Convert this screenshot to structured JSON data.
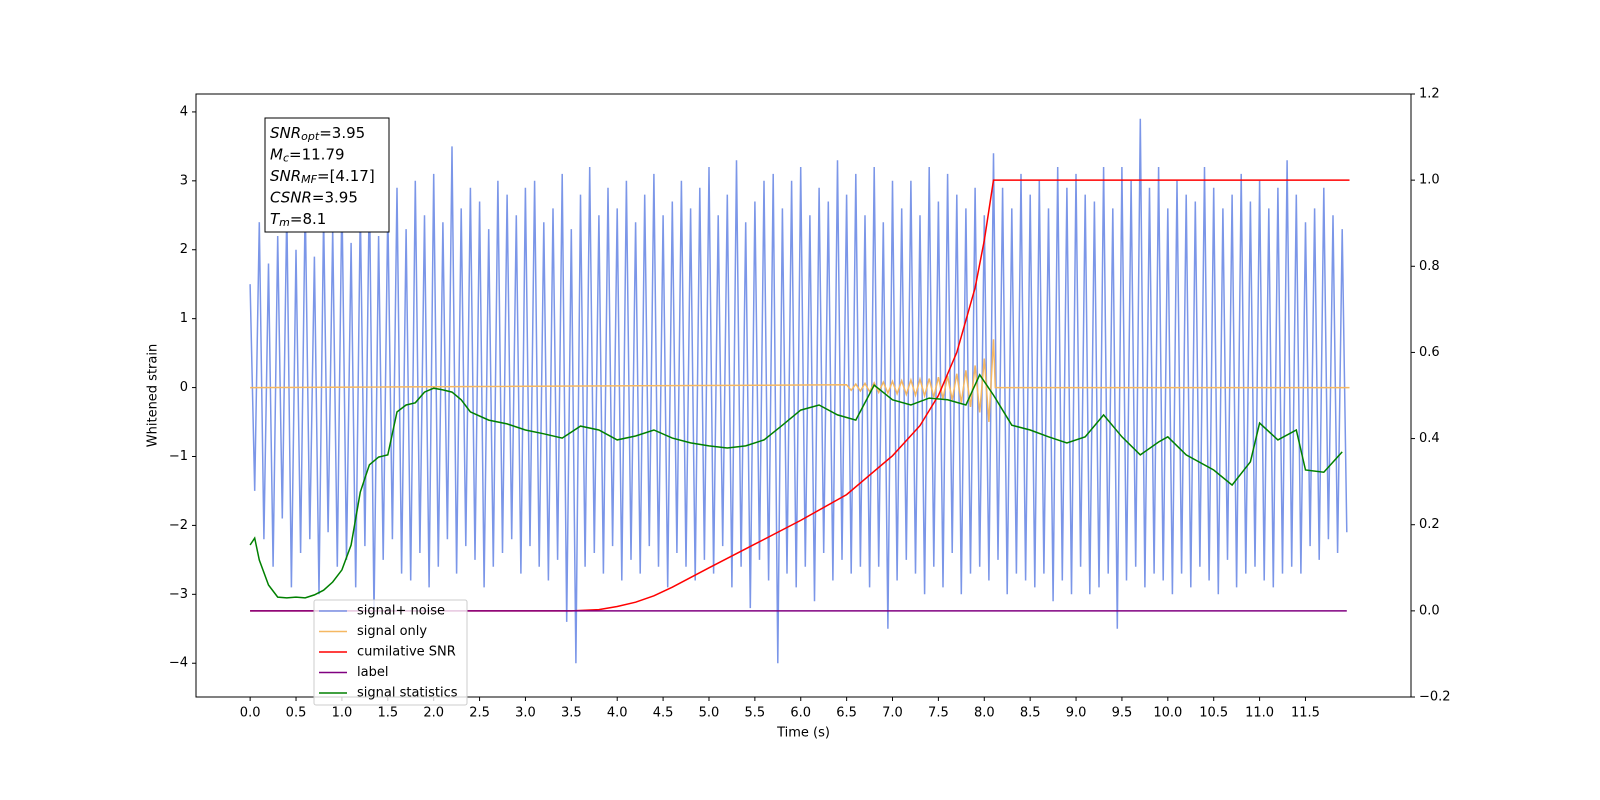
{
  "chart_data": {
    "type": "line",
    "xlabel": "Time (s)",
    "ylabel": "Whitened strain",
    "xlim": [
      -0.59,
      12.65
    ],
    "ylim": [
      -4.49,
      4.26
    ],
    "y2lim": [
      -0.2,
      1.2
    ],
    "xticks": [
      {
        "value": 0,
        "label": "0.0"
      },
      0.5,
      {
        "value": 1,
        "label": "1.0"
      },
      1.5,
      {
        "value": 2,
        "label": "2.0"
      },
      2.5,
      {
        "value": 3,
        "label": "3.0"
      },
      3.5,
      {
        "value": 4,
        "label": "4.0"
      },
      4.5,
      {
        "value": 5,
        "label": "5.0"
      },
      5.5,
      {
        "value": 6,
        "label": "6.0"
      },
      6.5,
      {
        "value": 7,
        "label": "7.0"
      },
      7.5,
      {
        "value": 8,
        "label": "8.0"
      },
      8.5,
      {
        "value": 9,
        "label": "9.0"
      },
      9.5,
      {
        "value": 10,
        "label": "10.0"
      },
      10.5,
      {
        "value": 11,
        "label": "11.0"
      },
      11.5
    ],
    "yticks": [
      {
        "value": -4,
        "label": "−4"
      },
      {
        "value": -3,
        "label": "−3"
      },
      {
        "value": -2,
        "label": "−2"
      },
      {
        "value": -1,
        "label": "−1"
      },
      0,
      1,
      2,
      3,
      4
    ],
    "y2ticks": [
      {
        "value": -0.2,
        "label": "−0.2"
      },
      {
        "value": 0,
        "label": "0.0"
      },
      0.2,
      0.4,
      0.6,
      0.8,
      {
        "value": 1,
        "label": "1.0"
      },
      1.2
    ],
    "legend_loc": "lower left",
    "annotations": [
      {
        "text": "SNR",
        "sub": "opt",
        "rest": "=3.95"
      },
      {
        "text": "M",
        "sub": "c",
        "rest": "=11.79"
      },
      {
        "text": "SNR",
        "sub": "MF",
        "rest": "=[4.17]"
      },
      {
        "text": "CSNR",
        "rest": "=3.95"
      },
      {
        "text": "T",
        "sub": "m",
        "rest": "=8.1"
      }
    ],
    "series": [
      {
        "name": "signal+ noise",
        "color": "#7b96e8",
        "axis": "y",
        "x": [
          0,
          0.05,
          0.1,
          0.15,
          0.2,
          0.25,
          0.3,
          0.35,
          0.4,
          0.45,
          0.5,
          0.55,
          0.6,
          0.65,
          0.7,
          0.75,
          0.8,
          0.85,
          0.9,
          0.95,
          1,
          1.05,
          1.1,
          1.15,
          1.2,
          1.25,
          1.3,
          1.35,
          1.4,
          1.45,
          1.5,
          1.55,
          1.6,
          1.65,
          1.7,
          1.75,
          1.8,
          1.85,
          1.9,
          1.95,
          2,
          2.05,
          2.1,
          2.15,
          2.2,
          2.25,
          2.3,
          2.35,
          2.4,
          2.45,
          2.5,
          2.55,
          2.6,
          2.65,
          2.7,
          2.75,
          2.8,
          2.85,
          2.9,
          2.95,
          3,
          3.05,
          3.1,
          3.15,
          3.2,
          3.25,
          3.3,
          3.35,
          3.4,
          3.45,
          3.5,
          3.55,
          3.6,
          3.65,
          3.7,
          3.75,
          3.8,
          3.85,
          3.9,
          3.95,
          4,
          4.05,
          4.1,
          4.15,
          4.2,
          4.25,
          4.3,
          4.35,
          4.4,
          4.45,
          4.5,
          4.55,
          4.6,
          4.65,
          4.7,
          4.75,
          4.8,
          4.85,
          4.9,
          4.95,
          5,
          5.05,
          5.1,
          5.15,
          5.2,
          5.25,
          5.3,
          5.35,
          5.4,
          5.45,
          5.5,
          5.55,
          5.6,
          5.65,
          5.7,
          5.75,
          5.8,
          5.85,
          5.9,
          5.95,
          6,
          6.05,
          6.1,
          6.15,
          6.2,
          6.25,
          6.3,
          6.35,
          6.4,
          6.45,
          6.5,
          6.55,
          6.6,
          6.65,
          6.7,
          6.75,
          6.8,
          6.85,
          6.9,
          6.95,
          7,
          7.05,
          7.1,
          7.15,
          7.2,
          7.25,
          7.3,
          7.35,
          7.4,
          7.45,
          7.5,
          7.55,
          7.6,
          7.65,
          7.7,
          7.75,
          7.8,
          7.85,
          7.9,
          7.95,
          8,
          8.05,
          8.1,
          8.15,
          8.2,
          8.25,
          8.3,
          8.35,
          8.4,
          8.45,
          8.5,
          8.55,
          8.6,
          8.65,
          8.7,
          8.75,
          8.8,
          8.85,
          8.9,
          8.95,
          9,
          9.05,
          9.1,
          9.15,
          9.2,
          9.25,
          9.3,
          9.35,
          9.4,
          9.45,
          9.5,
          9.55,
          9.6,
          9.65,
          9.7,
          9.75,
          9.8,
          9.85,
          9.9,
          9.95,
          10,
          10.05,
          10.1,
          10.15,
          10.2,
          10.25,
          10.3,
          10.35,
          10.4,
          10.45,
          10.5,
          10.55,
          10.6,
          10.65,
          10.7,
          10.75,
          10.8,
          10.85,
          10.9,
          10.95,
          11,
          11.05,
          11.1,
          11.15,
          11.2,
          11.25,
          11.3,
          11.35,
          11.4,
          11.45,
          11.5,
          11.55,
          11.6,
          11.65,
          11.7,
          11.75,
          11.8,
          11.85,
          11.9,
          11.95
        ],
        "values": [
          1.5,
          -1.5,
          2.4,
          -2.2,
          1.8,
          -2.6,
          2.2,
          -1.9,
          2.6,
          -2.9,
          2.0,
          -2.4,
          2.7,
          -2.2,
          1.9,
          -3.0,
          2.5,
          -2.1,
          2.3,
          -2.6,
          2.8,
          -2.5,
          2.1,
          -2.9,
          2.6,
          -2.3,
          3.0,
          -3.3,
          2.2,
          -2.5,
          2.6,
          -2.2,
          2.9,
          -2.7,
          2.3,
          -2.8,
          3.0,
          -2.4,
          2.5,
          -2.9,
          3.1,
          -2.6,
          2.4,
          -2.2,
          3.5,
          -2.7,
          2.6,
          -2.3,
          2.9,
          -2.5,
          2.7,
          -2.9,
          2.3,
          -2.6,
          3.0,
          -2.4,
          2.8,
          -2.2,
          2.5,
          -2.7,
          2.9,
          -2.3,
          3.0,
          -2.6,
          2.4,
          -2.8,
          2.6,
          -2.5,
          3.1,
          -3.4,
          2.3,
          -4.0,
          2.8,
          -2.6,
          3.2,
          -2.4,
          2.5,
          -2.7,
          2.9,
          -2.3,
          2.6,
          -2.8,
          3.0,
          -2.5,
          2.4,
          -2.7,
          2.8,
          -2.3,
          3.1,
          -2.6,
          2.5,
          -2.9,
          2.7,
          -2.4,
          3.0,
          -2.6,
          2.6,
          -2.8,
          2.9,
          -2.5,
          3.2,
          -2.7,
          2.5,
          -2.3,
          2.8,
          -2.9,
          3.3,
          -2.6,
          2.4,
          -3.2,
          2.7,
          -2.5,
          3.0,
          -2.8,
          3.1,
          -4.0,
          2.6,
          -2.7,
          3.0,
          -2.9,
          3.2,
          -2.6,
          2.5,
          -3.1,
          2.9,
          -2.4,
          2.7,
          -2.8,
          3.3,
          -2.5,
          2.8,
          -2.7,
          3.1,
          -2.6,
          2.5,
          -2.9,
          3.2,
          -2.6,
          2.4,
          -3.5,
          3.0,
          -2.8,
          2.6,
          -2.5,
          3.0,
          -2.7,
          2.5,
          -3.0,
          3.2,
          -2.6,
          2.7,
          -2.9,
          3.1,
          -2.4,
          2.8,
          -3.0,
          2.6,
          -2.7,
          2.9,
          -2.6,
          2.5,
          -2.8,
          3.4,
          -2.5,
          2.9,
          -3.0,
          2.6,
          -2.7,
          3.1,
          -2.8,
          2.8,
          -2.9,
          3.0,
          -2.7,
          2.6,
          -3.1,
          3.2,
          -2.8,
          2.9,
          -3.0,
          3.1,
          -2.6,
          2.8,
          -3.0,
          2.7,
          -2.9,
          3.2,
          -2.7,
          2.6,
          -3.5,
          3.2,
          -2.8,
          3.0,
          -2.6,
          3.9,
          -2.9,
          2.9,
          -2.7,
          3.2,
          -2.8,
          2.6,
          -3.0,
          3.0,
          -2.7,
          2.8,
          -2.9,
          2.7,
          -2.6,
          3.2,
          -2.8,
          2.9,
          -3.0,
          2.6,
          -2.5,
          2.8,
          -2.9,
          3.1,
          -2.7,
          2.7,
          -2.6,
          3.0,
          -2.8,
          2.6,
          -2.9,
          2.9,
          -2.7,
          3.3,
          -2.6,
          2.8,
          -2.7,
          2.4,
          -2.3,
          2.6,
          -2.5,
          2.9,
          -2.2,
          2.5,
          -2.4,
          2.3,
          -2.1
        ]
      },
      {
        "name": "signal only",
        "color": "#f5b862",
        "axis": "y",
        "x": [
          0,
          6.5,
          6.55,
          6.6,
          6.65,
          6.7,
          6.75,
          6.8,
          6.85,
          6.9,
          6.95,
          7,
          7.05,
          7.1,
          7.15,
          7.2,
          7.25,
          7.3,
          7.35,
          7.4,
          7.45,
          7.5,
          7.55,
          7.6,
          7.65,
          7.7,
          7.75,
          7.8,
          7.85,
          7.9,
          7.95,
          8,
          8.05,
          8.1,
          8.12,
          11.98
        ],
        "values": [
          0,
          0.04,
          -0.04,
          0.05,
          -0.05,
          0.06,
          -0.06,
          0.07,
          -0.07,
          0.08,
          -0.08,
          0.09,
          -0.09,
          0.1,
          -0.1,
          0.11,
          -0.11,
          0.12,
          -0.12,
          0.13,
          -0.14,
          0.15,
          -0.16,
          0.17,
          -0.18,
          0.2,
          -0.22,
          0.25,
          -0.28,
          0.32,
          -0.36,
          0.42,
          -0.5,
          0.7,
          0,
          0
        ]
      },
      {
        "name": "cumilative SNR",
        "color": "#ff0000",
        "axis": "y2",
        "x": [
          0,
          3.5,
          3.8,
          4,
          4.2,
          4.4,
          4.6,
          5,
          5.5,
          6,
          6.5,
          7,
          7.3,
          7.5,
          7.7,
          7.9,
          8,
          8.05,
          8.1,
          11.98
        ],
        "values": [
          0,
          0,
          0.003,
          0.01,
          0.02,
          0.035,
          0.055,
          0.1,
          0.155,
          0.21,
          0.27,
          0.36,
          0.43,
          0.5,
          0.6,
          0.75,
          0.86,
          0.93,
          1,
          1
        ]
      },
      {
        "name": "label",
        "color": "#800080",
        "axis": "y2",
        "x": [
          0,
          11.95
        ],
        "values": [
          0,
          0
        ]
      },
      {
        "name": "signal statistics",
        "color": "#008000",
        "axis": "y2",
        "x": [
          0,
          0.05,
          0.1,
          0.2,
          0.3,
          0.4,
          0.5,
          0.6,
          0.7,
          0.8,
          0.9,
          1,
          1.1,
          1.2,
          1.3,
          1.4,
          1.5,
          1.6,
          1.7,
          1.8,
          1.9,
          2,
          2.1,
          2.2,
          2.3,
          2.4,
          2.6,
          2.8,
          3,
          3.2,
          3.4,
          3.6,
          3.8,
          4,
          4.2,
          4.4,
          4.6,
          4.8,
          5,
          5.2,
          5.4,
          5.6,
          5.8,
          6,
          6.2,
          6.4,
          6.6,
          6.8,
          7,
          7.2,
          7.4,
          7.6,
          7.8,
          7.95,
          8.1,
          8.3,
          8.5,
          8.7,
          8.9,
          9.1,
          9.3,
          9.5,
          9.7,
          9.9,
          10,
          10.2,
          10.5,
          10.7,
          10.9,
          11,
          11.2,
          11.4,
          11.5,
          11.7,
          11.9
        ],
        "values": [
          0.153,
          0.169,
          0.118,
          0.06,
          0.032,
          0.03,
          0.032,
          0.03,
          0.037,
          0.048,
          0.067,
          0.095,
          0.153,
          0.276,
          0.339,
          0.357,
          0.362,
          0.462,
          0.478,
          0.483,
          0.508,
          0.517,
          0.513,
          0.508,
          0.49,
          0.462,
          0.443,
          0.434,
          0.42,
          0.411,
          0.401,
          0.429,
          0.42,
          0.397,
          0.406,
          0.42,
          0.401,
          0.39,
          0.383,
          0.378,
          0.383,
          0.397,
          0.431,
          0.466,
          0.478,
          0.455,
          0.443,
          0.524,
          0.49,
          0.478,
          0.494,
          0.49,
          0.478,
          0.548,
          0.501,
          0.431,
          0.42,
          0.404,
          0.39,
          0.404,
          0.455,
          0.404,
          0.362,
          0.392,
          0.404,
          0.362,
          0.327,
          0.292,
          0.346,
          0.436,
          0.397,
          0.42,
          0.327,
          0.322,
          0.369
        ]
      }
    ]
  }
}
